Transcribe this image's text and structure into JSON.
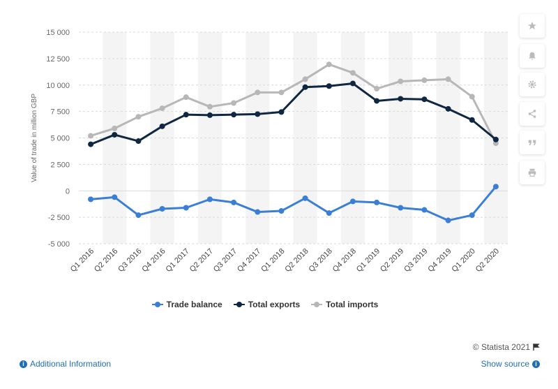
{
  "chart_data": {
    "type": "line",
    "categories": [
      "Q1 2016",
      "Q2 2016",
      "Q3 2016",
      "Q4 2016",
      "Q1 2017",
      "Q2 2017",
      "Q3 2017",
      "Q4 2017",
      "Q1 2018",
      "Q2 2018",
      "Q3 2018",
      "Q4 2018",
      "Q1 2019",
      "Q2 2019",
      "Q3 2019",
      "Q4 2019",
      "Q1 2020",
      "Q2 2020"
    ],
    "series": [
      {
        "name": "Trade balance",
        "color": "#3a7fd5",
        "values": [
          -800,
          -600,
          -2300,
          -1700,
          -1600,
          -800,
          -1100,
          -2000,
          -1900,
          -700,
          -2100,
          -1000,
          -1100,
          -1600,
          -1800,
          -2800,
          -2300,
          400
        ]
      },
      {
        "name": "Total exports",
        "color": "#0f2741",
        "values": [
          4400,
          5300,
          4700,
          6100,
          7200,
          7150,
          7200,
          7250,
          7450,
          9800,
          9900,
          10150,
          8500,
          8700,
          8650,
          7750,
          6700,
          4850
        ]
      },
      {
        "name": "Total imports",
        "color": "#b7b7b7",
        "values": [
          5200,
          5900,
          7000,
          7800,
          8850,
          7950,
          8300,
          9300,
          9300,
          10550,
          11950,
          11150,
          9650,
          10350,
          10450,
          10550,
          8900,
          4500
        ]
      }
    ],
    "ylabel": "Value of trade in million GBP",
    "ylim": [
      -5000,
      15000
    ],
    "yticks": [
      15000,
      12500,
      10000,
      7500,
      5000,
      2500,
      0,
      -2500,
      -5000
    ],
    "ytick_labels": [
      "15 000",
      "12 500",
      "10 000",
      "7 500",
      "5 000",
      "2 500",
      "0",
      "-2 500",
      "-5 000"
    ],
    "grid": true,
    "legend_position": "bottom"
  },
  "credit": "© Statista 2021",
  "footer": {
    "additional_info": "Additional Information",
    "show_source": "Show source"
  },
  "toolbar_icons": [
    "star-icon",
    "bell-icon",
    "gear-icon",
    "share-icon",
    "quote-icon",
    "print-icon"
  ]
}
